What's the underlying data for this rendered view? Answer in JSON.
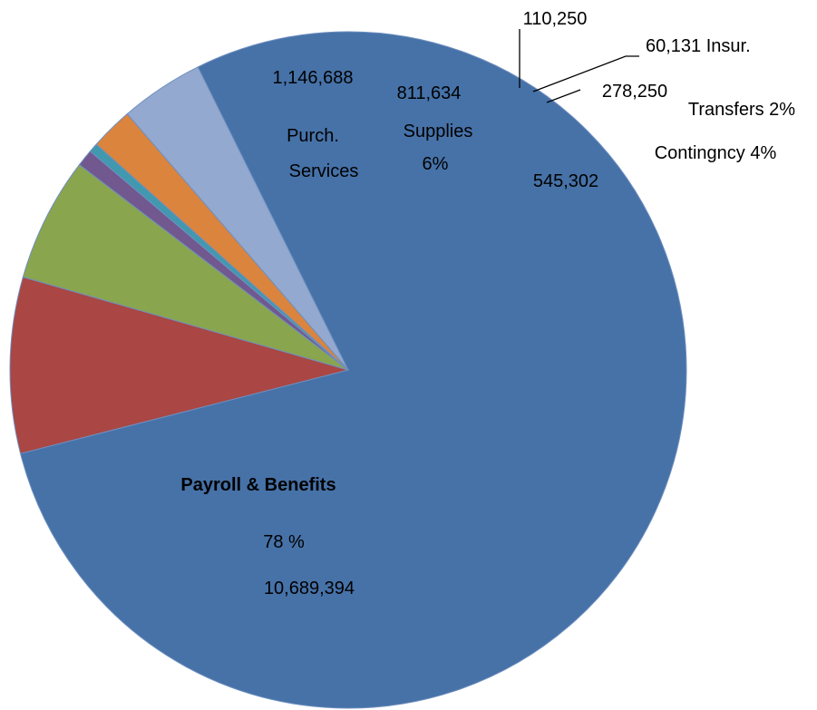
{
  "chart_data": {
    "type": "pie",
    "title": "",
    "slices": [
      {
        "key": "payroll",
        "value": 10689394,
        "color": "#4672a8",
        "value_label": "10,689,394",
        "name_label": "Payroll & Benefits",
        "pct_label": "78 %"
      },
      {
        "key": "purchased",
        "value": 1146688,
        "color": "#aa4643",
        "value_label": "1,146,688",
        "name_label_lines": [
          "Purch.",
          "Services"
        ]
      },
      {
        "key": "supplies",
        "value": 811634,
        "color": "#89a54e",
        "value_label": "811,634",
        "name_label_lines": [
          "Supplies",
          "6%"
        ]
      },
      {
        "key": "other",
        "value": 110250,
        "color": "#71588f",
        "value_label": "110,250"
      },
      {
        "key": "insurance",
        "value": 60131,
        "color": "#4198af",
        "value_label": "60,131 Insur."
      },
      {
        "key": "transfers",
        "value": 278250,
        "color": "#db843d",
        "value_label": "278,250",
        "name_label": "Transfers 2%"
      },
      {
        "key": "contingency",
        "value": 545302,
        "color": "#93a9cf",
        "value_label": "545,302",
        "name_label": "Contingncy 4%"
      }
    ]
  }
}
